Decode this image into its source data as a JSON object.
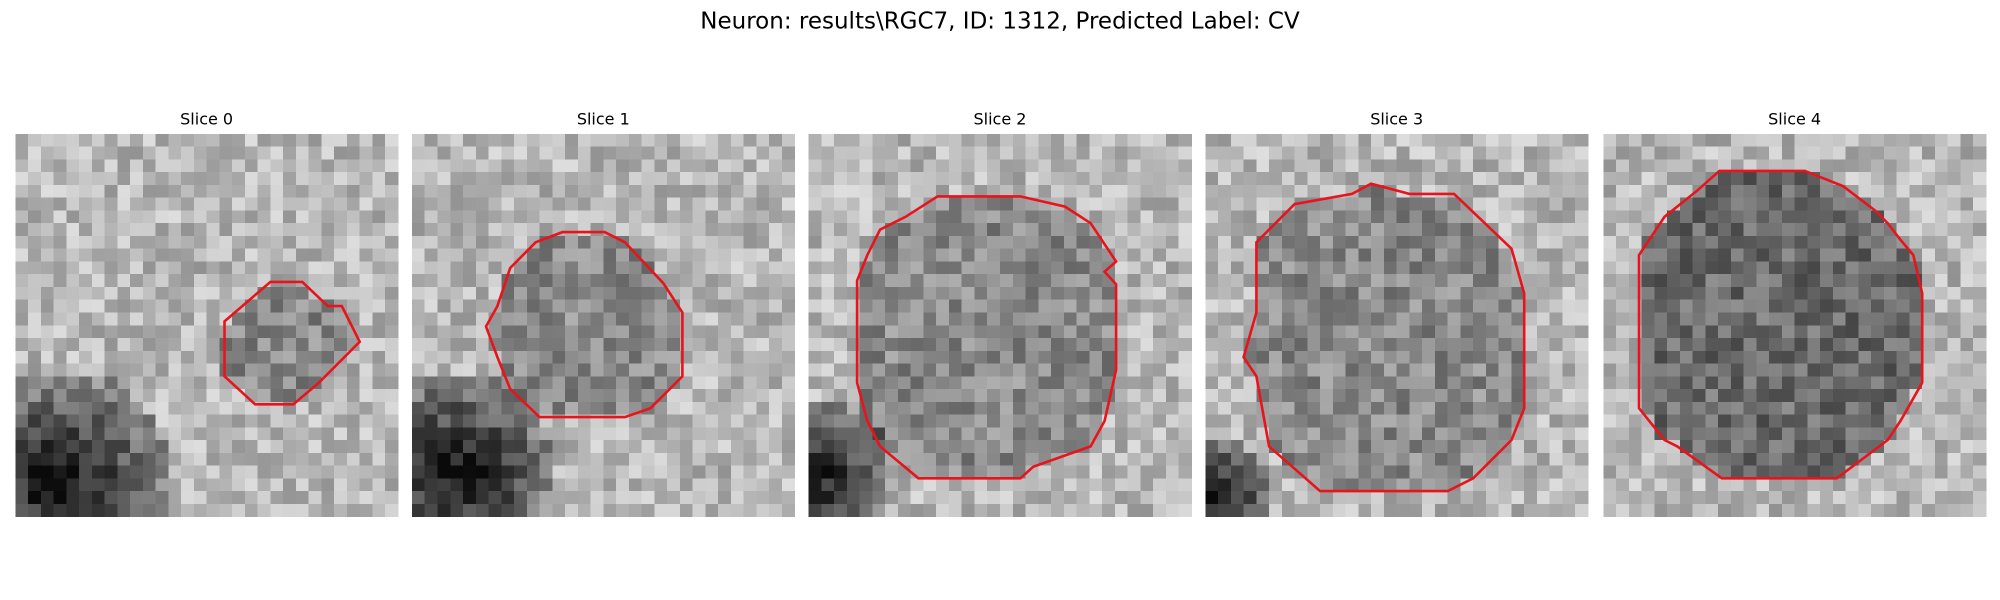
{
  "title": "Neuron: results\\RGC7, ID: 1312, Predicted Label: CV",
  "panels": [
    {
      "title": "Slice 0"
    },
    {
      "title": "Slice 1"
    },
    {
      "title": "Slice 2"
    },
    {
      "title": "Slice 3"
    },
    {
      "title": "Slice 4"
    }
  ]
}
